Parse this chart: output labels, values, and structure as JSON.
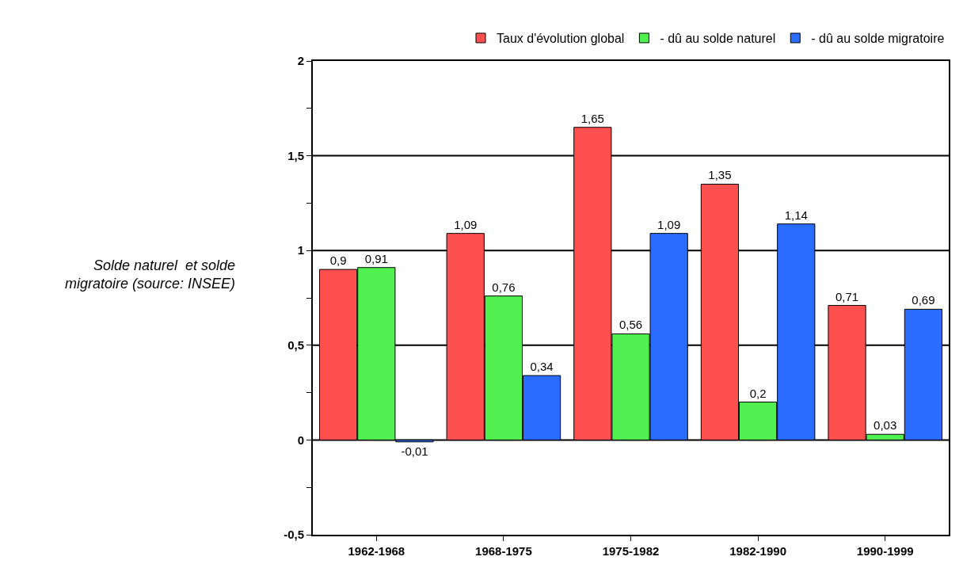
{
  "chart_data": {
    "type": "bar",
    "ylabel": "Solde naturel  et solde migratoire (source: INSEE)",
    "categories": [
      "1962-1968",
      "1968-1975",
      "1975-1982",
      "1982-1990",
      "1990-1999"
    ],
    "series": [
      {
        "name": "Taux d'évolution global",
        "color": "#ff5050",
        "values": [
          0.9,
          1.09,
          1.65,
          1.35,
          0.71
        ],
        "value_labels": [
          "0,9",
          "1,09",
          "1,65",
          "1,35",
          "0,71"
        ]
      },
      {
        "name": "- dû au solde naturel",
        "color": "#50f050",
        "values": [
          0.91,
          0.76,
          0.56,
          0.2,
          0.03
        ],
        "value_labels": [
          "0,91",
          "0,76",
          "0,56",
          "0,2",
          "0,03"
        ]
      },
      {
        "name": "- dû au solde migratoire",
        "color": "#2a6cff",
        "values": [
          -0.01,
          0.34,
          1.09,
          1.14,
          0.69
        ],
        "value_labels": [
          "-0,01",
          "0,34",
          "1,09",
          "1,14",
          "0,69"
        ]
      }
    ],
    "ylim": [
      -0.5,
      2
    ],
    "yticks": [
      {
        "value": -0.5,
        "label": "-0,5"
      },
      {
        "value": -0.25,
        "label": null
      },
      0,
      {
        "value": 0.25,
        "label": null
      },
      {
        "value": 0.5,
        "label": "0,5"
      },
      {
        "value": 0.75,
        "label": null
      },
      1,
      {
        "value": 1.25,
        "label": null
      },
      {
        "value": 1.5,
        "label": "1,5"
      },
      {
        "value": 1.75,
        "label": null
      },
      2
    ],
    "grid": "y",
    "legend": "top right"
  }
}
